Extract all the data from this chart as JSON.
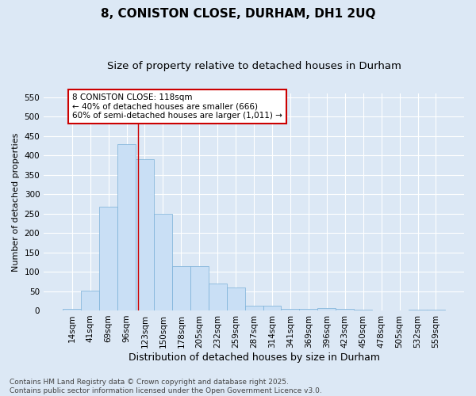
{
  "title": "8, CONISTON CLOSE, DURHAM, DH1 2UQ",
  "subtitle": "Size of property relative to detached houses in Durham",
  "xlabel": "Distribution of detached houses by size in Durham",
  "ylabel": "Number of detached properties",
  "categories": [
    "14sqm",
    "41sqm",
    "69sqm",
    "96sqm",
    "123sqm",
    "150sqm",
    "178sqm",
    "205sqm",
    "232sqm",
    "259sqm",
    "287sqm",
    "314sqm",
    "341sqm",
    "369sqm",
    "396sqm",
    "423sqm",
    "450sqm",
    "478sqm",
    "505sqm",
    "532sqm",
    "559sqm"
  ],
  "values": [
    3,
    52,
    268,
    430,
    390,
    250,
    115,
    115,
    70,
    60,
    13,
    13,
    5,
    5,
    7,
    3,
    1,
    0,
    0,
    1,
    2
  ],
  "bar_color": "#c9dff5",
  "bar_edgecolor": "#7ab0d8",
  "background_color": "#dce8f5",
  "plot_bg_color": "#dce8f5",
  "grid_color": "#ffffff",
  "annotation_text": "8 CONISTON CLOSE: 118sqm\n← 40% of detached houses are smaller (666)\n60% of semi-detached houses are larger (1,011) →",
  "annotation_box_facecolor": "#ffffff",
  "annotation_box_edgecolor": "#cc0000",
  "vline_x_index": 3.63,
  "ylim": [
    0,
    560
  ],
  "yticks": [
    0,
    50,
    100,
    150,
    200,
    250,
    300,
    350,
    400,
    450,
    500,
    550
  ],
  "footer": "Contains HM Land Registry data © Crown copyright and database right 2025.\nContains public sector information licensed under the Open Government Licence v3.0.",
  "title_fontsize": 11,
  "subtitle_fontsize": 9.5,
  "xlabel_fontsize": 9,
  "ylabel_fontsize": 8,
  "tick_fontsize": 7.5,
  "annotation_fontsize": 7.5,
  "footer_fontsize": 6.5
}
